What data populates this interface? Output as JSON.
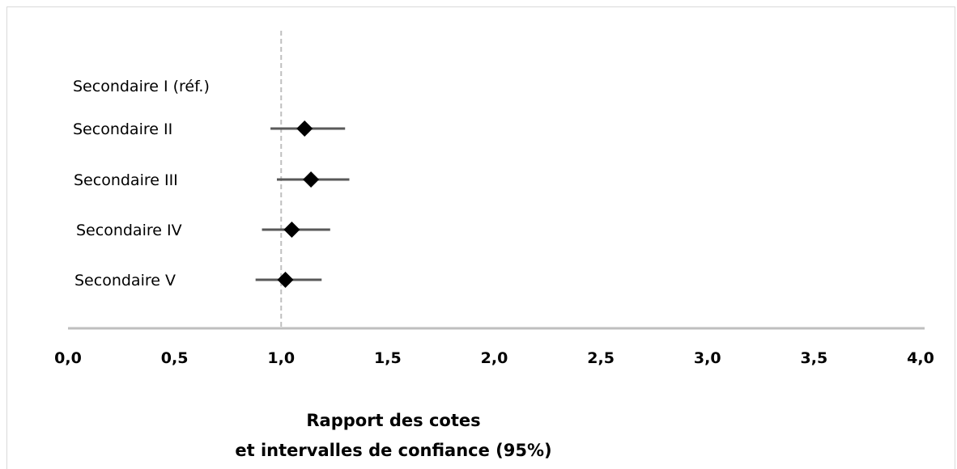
{
  "chart_data": {
    "type": "forest",
    "categories": [
      "Secondaire I  (réf.)",
      "Secondaire II",
      "Secondaire III",
      "Secondaire IV",
      "Secondaire V"
    ],
    "estimates": [
      null,
      1.11,
      1.14,
      1.05,
      1.02
    ],
    "ci_lower": [
      null,
      0.95,
      0.98,
      0.91,
      0.88
    ],
    "ci_upper": [
      null,
      1.3,
      1.32,
      1.23,
      1.19
    ],
    "reference_line": 1.0,
    "xlim": [
      0.0,
      4.0
    ],
    "xticks": [
      "0,0",
      "0,5",
      "1,0",
      "1,5",
      "2,0",
      "2,5",
      "3,0",
      "3,5",
      "4,0"
    ],
    "xlabel_line1": "Rapport des cotes",
    "xlabel_line2": "et intervalles de confiance (95%)",
    "grid": false,
    "colors": {
      "marker": "#000000",
      "ci_line": "#595959",
      "axis": "#bfbfbf",
      "reference_line": "#bfbfbf",
      "frame": "#d9d9d9"
    }
  }
}
